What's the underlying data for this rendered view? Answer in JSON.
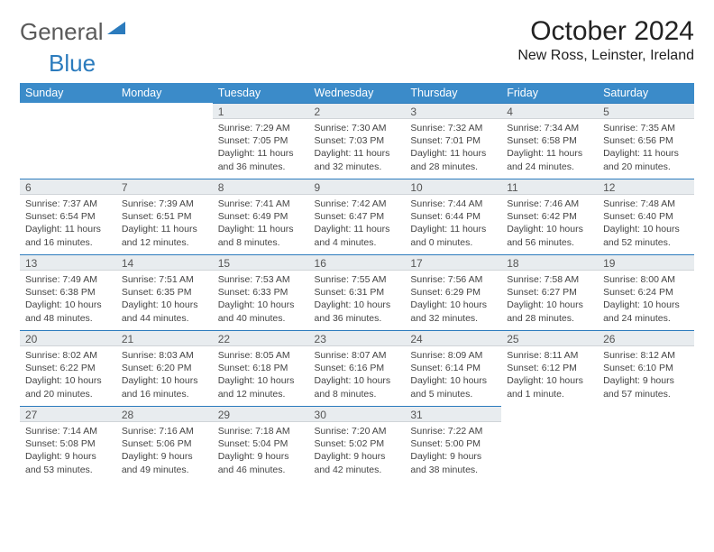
{
  "brand": {
    "part1": "General",
    "part2": "Blue",
    "triangle_color": "#2b7bbd"
  },
  "title": {
    "month": "October 2024",
    "location": "New Ross, Leinster, Ireland"
  },
  "colors": {
    "header_bg": "#3b8bc9",
    "header_text": "#ffffff",
    "daybar_bg": "#e8ecef",
    "daybar_border_top": "#2b7bbd",
    "body_text": "#444444"
  },
  "daysOfWeek": [
    "Sunday",
    "Monday",
    "Tuesday",
    "Wednesday",
    "Thursday",
    "Friday",
    "Saturday"
  ],
  "weeks": [
    [
      null,
      null,
      {
        "n": "1",
        "sr": "7:29 AM",
        "ss": "7:05 PM",
        "dl": "11 hours and 36 minutes."
      },
      {
        "n": "2",
        "sr": "7:30 AM",
        "ss": "7:03 PM",
        "dl": "11 hours and 32 minutes."
      },
      {
        "n": "3",
        "sr": "7:32 AM",
        "ss": "7:01 PM",
        "dl": "11 hours and 28 minutes."
      },
      {
        "n": "4",
        "sr": "7:34 AM",
        "ss": "6:58 PM",
        "dl": "11 hours and 24 minutes."
      },
      {
        "n": "5",
        "sr": "7:35 AM",
        "ss": "6:56 PM",
        "dl": "11 hours and 20 minutes."
      }
    ],
    [
      {
        "n": "6",
        "sr": "7:37 AM",
        "ss": "6:54 PM",
        "dl": "11 hours and 16 minutes."
      },
      {
        "n": "7",
        "sr": "7:39 AM",
        "ss": "6:51 PM",
        "dl": "11 hours and 12 minutes."
      },
      {
        "n": "8",
        "sr": "7:41 AM",
        "ss": "6:49 PM",
        "dl": "11 hours and 8 minutes."
      },
      {
        "n": "9",
        "sr": "7:42 AM",
        "ss": "6:47 PM",
        "dl": "11 hours and 4 minutes."
      },
      {
        "n": "10",
        "sr": "7:44 AM",
        "ss": "6:44 PM",
        "dl": "11 hours and 0 minutes."
      },
      {
        "n": "11",
        "sr": "7:46 AM",
        "ss": "6:42 PM",
        "dl": "10 hours and 56 minutes."
      },
      {
        "n": "12",
        "sr": "7:48 AM",
        "ss": "6:40 PM",
        "dl": "10 hours and 52 minutes."
      }
    ],
    [
      {
        "n": "13",
        "sr": "7:49 AM",
        "ss": "6:38 PM",
        "dl": "10 hours and 48 minutes."
      },
      {
        "n": "14",
        "sr": "7:51 AM",
        "ss": "6:35 PM",
        "dl": "10 hours and 44 minutes."
      },
      {
        "n": "15",
        "sr": "7:53 AM",
        "ss": "6:33 PM",
        "dl": "10 hours and 40 minutes."
      },
      {
        "n": "16",
        "sr": "7:55 AM",
        "ss": "6:31 PM",
        "dl": "10 hours and 36 minutes."
      },
      {
        "n": "17",
        "sr": "7:56 AM",
        "ss": "6:29 PM",
        "dl": "10 hours and 32 minutes."
      },
      {
        "n": "18",
        "sr": "7:58 AM",
        "ss": "6:27 PM",
        "dl": "10 hours and 28 minutes."
      },
      {
        "n": "19",
        "sr": "8:00 AM",
        "ss": "6:24 PM",
        "dl": "10 hours and 24 minutes."
      }
    ],
    [
      {
        "n": "20",
        "sr": "8:02 AM",
        "ss": "6:22 PM",
        "dl": "10 hours and 20 minutes."
      },
      {
        "n": "21",
        "sr": "8:03 AM",
        "ss": "6:20 PM",
        "dl": "10 hours and 16 minutes."
      },
      {
        "n": "22",
        "sr": "8:05 AM",
        "ss": "6:18 PM",
        "dl": "10 hours and 12 minutes."
      },
      {
        "n": "23",
        "sr": "8:07 AM",
        "ss": "6:16 PM",
        "dl": "10 hours and 8 minutes."
      },
      {
        "n": "24",
        "sr": "8:09 AM",
        "ss": "6:14 PM",
        "dl": "10 hours and 5 minutes."
      },
      {
        "n": "25",
        "sr": "8:11 AM",
        "ss": "6:12 PM",
        "dl": "10 hours and 1 minute."
      },
      {
        "n": "26",
        "sr": "8:12 AM",
        "ss": "6:10 PM",
        "dl": "9 hours and 57 minutes."
      }
    ],
    [
      {
        "n": "27",
        "sr": "7:14 AM",
        "ss": "5:08 PM",
        "dl": "9 hours and 53 minutes."
      },
      {
        "n": "28",
        "sr": "7:16 AM",
        "ss": "5:06 PM",
        "dl": "9 hours and 49 minutes."
      },
      {
        "n": "29",
        "sr": "7:18 AM",
        "ss": "5:04 PM",
        "dl": "9 hours and 46 minutes."
      },
      {
        "n": "30",
        "sr": "7:20 AM",
        "ss": "5:02 PM",
        "dl": "9 hours and 42 minutes."
      },
      {
        "n": "31",
        "sr": "7:22 AM",
        "ss": "5:00 PM",
        "dl": "9 hours and 38 minutes."
      },
      null,
      null
    ]
  ],
  "labels": {
    "sunrise": "Sunrise:",
    "sunset": "Sunset:",
    "daylight": "Daylight:"
  }
}
